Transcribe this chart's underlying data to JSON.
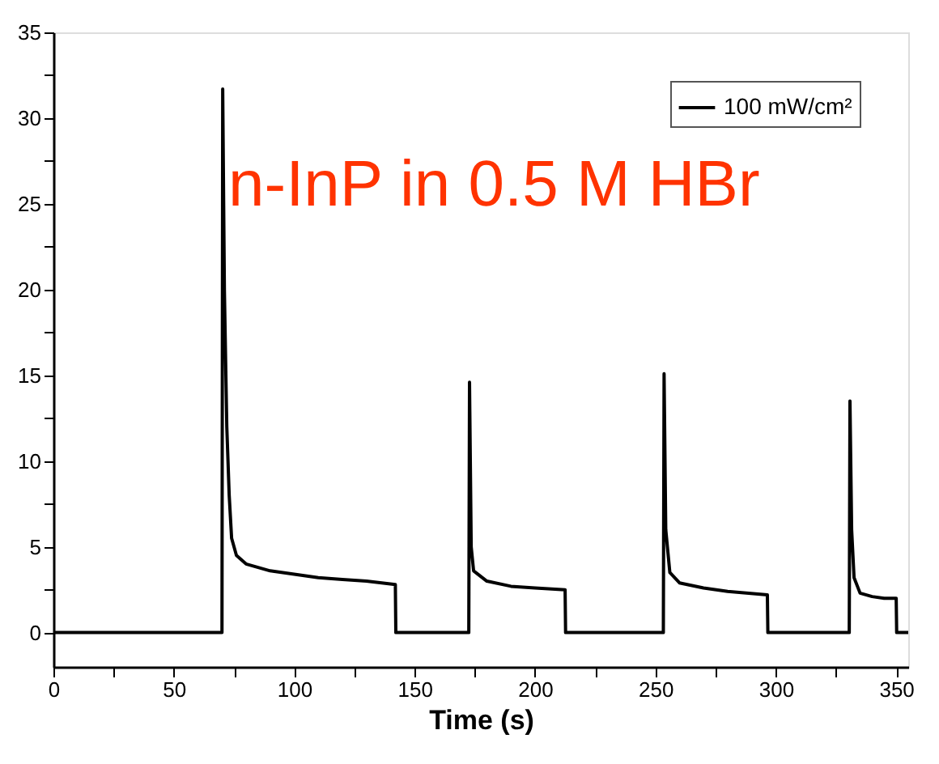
{
  "chart_data": {
    "type": "line",
    "xlabel": "Time (s)",
    "annotations": [
      "n-InP in 0.5 M HBr"
    ],
    "xlim": [
      0,
      355
    ],
    "ylim": [
      -2,
      35
    ],
    "xticks": [
      0,
      {
        "value": 25,
        "label": null
      },
      50,
      {
        "value": 75,
        "label": null
      },
      100,
      {
        "value": 125,
        "label": null
      },
      150,
      {
        "value": 175,
        "label": null
      },
      200,
      {
        "value": 225,
        "label": null
      },
      250,
      {
        "value": 275,
        "label": null
      },
      300,
      {
        "value": 325,
        "label": null
      },
      350
    ],
    "yticks": [
      0,
      {
        "value": 2.5,
        "label": null
      },
      5,
      {
        "value": 7.5,
        "label": null
      },
      10,
      {
        "value": 12.5,
        "label": null
      },
      15,
      {
        "value": 17.5,
        "label": null
      },
      20,
      {
        "value": 22.5,
        "label": null
      },
      25,
      {
        "value": 27.5,
        "label": null
      },
      30,
      {
        "value": 32.5,
        "label": null
      },
      35
    ],
    "grid": false,
    "legend": "top right",
    "marker": "none",
    "line_style": "solid",
    "series": [
      {
        "name": "100 mW/cm²",
        "color": "#000000",
        "x": [
          0,
          70,
          70.3,
          71,
          72,
          73,
          74,
          76,
          80,
          90,
          100,
          110,
          120,
          130,
          142,
          142.2,
          172.5,
          172.8,
          173.5,
          174.5,
          180,
          190,
          200,
          212.5,
          212.7,
          253.3,
          253.6,
          254.3,
          256,
          260,
          270,
          280,
          296.5,
          296.7,
          330.5,
          330.8,
          331.5,
          332.5,
          335,
          340,
          345,
          350,
          350.2,
          355
        ],
        "values": [
          0,
          0,
          31.7,
          20,
          12,
          8,
          5.5,
          4.5,
          4.0,
          3.6,
          3.4,
          3.2,
          3.1,
          3.0,
          2.8,
          0,
          0,
          14.6,
          5,
          3.6,
          3.0,
          2.7,
          2.6,
          2.5,
          0,
          0,
          15.1,
          6,
          3.5,
          2.9,
          2.6,
          2.4,
          2.2,
          0,
          0,
          13.5,
          6,
          3.2,
          2.3,
          2.1,
          2.0,
          2.0,
          0,
          0
        ]
      }
    ]
  }
}
